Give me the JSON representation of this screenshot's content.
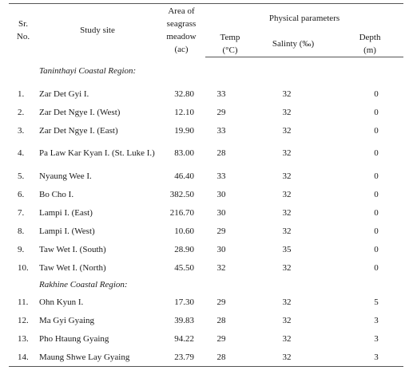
{
  "headers": {
    "sr_no": "Sr. No.",
    "study_site": "Study site",
    "area": "Area of seagrass meadow (ac)",
    "physical": "Physical parameters",
    "temp": "Temp (°C)",
    "salinity": "Salinty (‰)",
    "depth": "Depth (m)"
  },
  "regions": [
    {
      "name": "Taninthayi Coastal Region:",
      "rows": [
        {
          "no": "1.",
          "site": "Zar Det Gyi I.",
          "area": "32.80",
          "temp": "33",
          "salinity": "32",
          "depth": "0"
        },
        {
          "no": "2.",
          "site": "Zar Det Ngye I. (West)",
          "area": "12.10",
          "temp": "29",
          "salinity": "32",
          "depth": "0"
        },
        {
          "no": "3.",
          "site": "Zar Det Ngye I. (East)",
          "area": "19.90",
          "temp": "33",
          "salinity": "32",
          "depth": "0"
        },
        {
          "no": "4.",
          "site": "Pa Law Kar Kyan I. (St. Luke I.)",
          "area": "83.00",
          "temp": "28",
          "salinity": "32",
          "depth": "0"
        },
        {
          "no": "5.",
          "site": "Nyaung Wee I.",
          "area": "46.40",
          "temp": "33",
          "salinity": "32",
          "depth": "0"
        },
        {
          "no": "6.",
          "site": "Bo Cho I.",
          "area": "382.50",
          "temp": "30",
          "salinity": "32",
          "depth": "0"
        },
        {
          "no": "7.",
          "site": "Lampi I. (East)",
          "area": "216.70",
          "temp": "30",
          "salinity": "32",
          "depth": "0"
        },
        {
          "no": "8.",
          "site": "Lampi I. (West)",
          "area": "10.60",
          "temp": "29",
          "salinity": "32",
          "depth": "0"
        },
        {
          "no": "9.",
          "site": "Taw Wet I. (South)",
          "area": "28.90",
          "temp": "30",
          "salinity": "35",
          "depth": "0"
        },
        {
          "no": "10.",
          "site": "Taw Wet I. (North)",
          "area": "45.50",
          "temp": "32",
          "salinity": "32",
          "depth": "0"
        }
      ]
    },
    {
      "name": "Rakhine Coastal Region:",
      "rows": [
        {
          "no": "11.",
          "site": "Ohn Kyun I.",
          "area": "17.30",
          "temp": "29",
          "salinity": "32",
          "depth": "5"
        },
        {
          "no": "12.",
          "site": "Ma Gyi Gyaing",
          "area": "39.83",
          "temp": "28",
          "salinity": "32",
          "depth": "3"
        },
        {
          "no": "13.",
          "site": "Pho Htaung Gyaing",
          "area": "94.22",
          "temp": "29",
          "salinity": "32",
          "depth": "3"
        },
        {
          "no": "14.",
          "site": "Maung Shwe Lay Gyaing",
          "area": "23.79",
          "temp": "28",
          "salinity": "32",
          "depth": "3"
        }
      ]
    }
  ]
}
